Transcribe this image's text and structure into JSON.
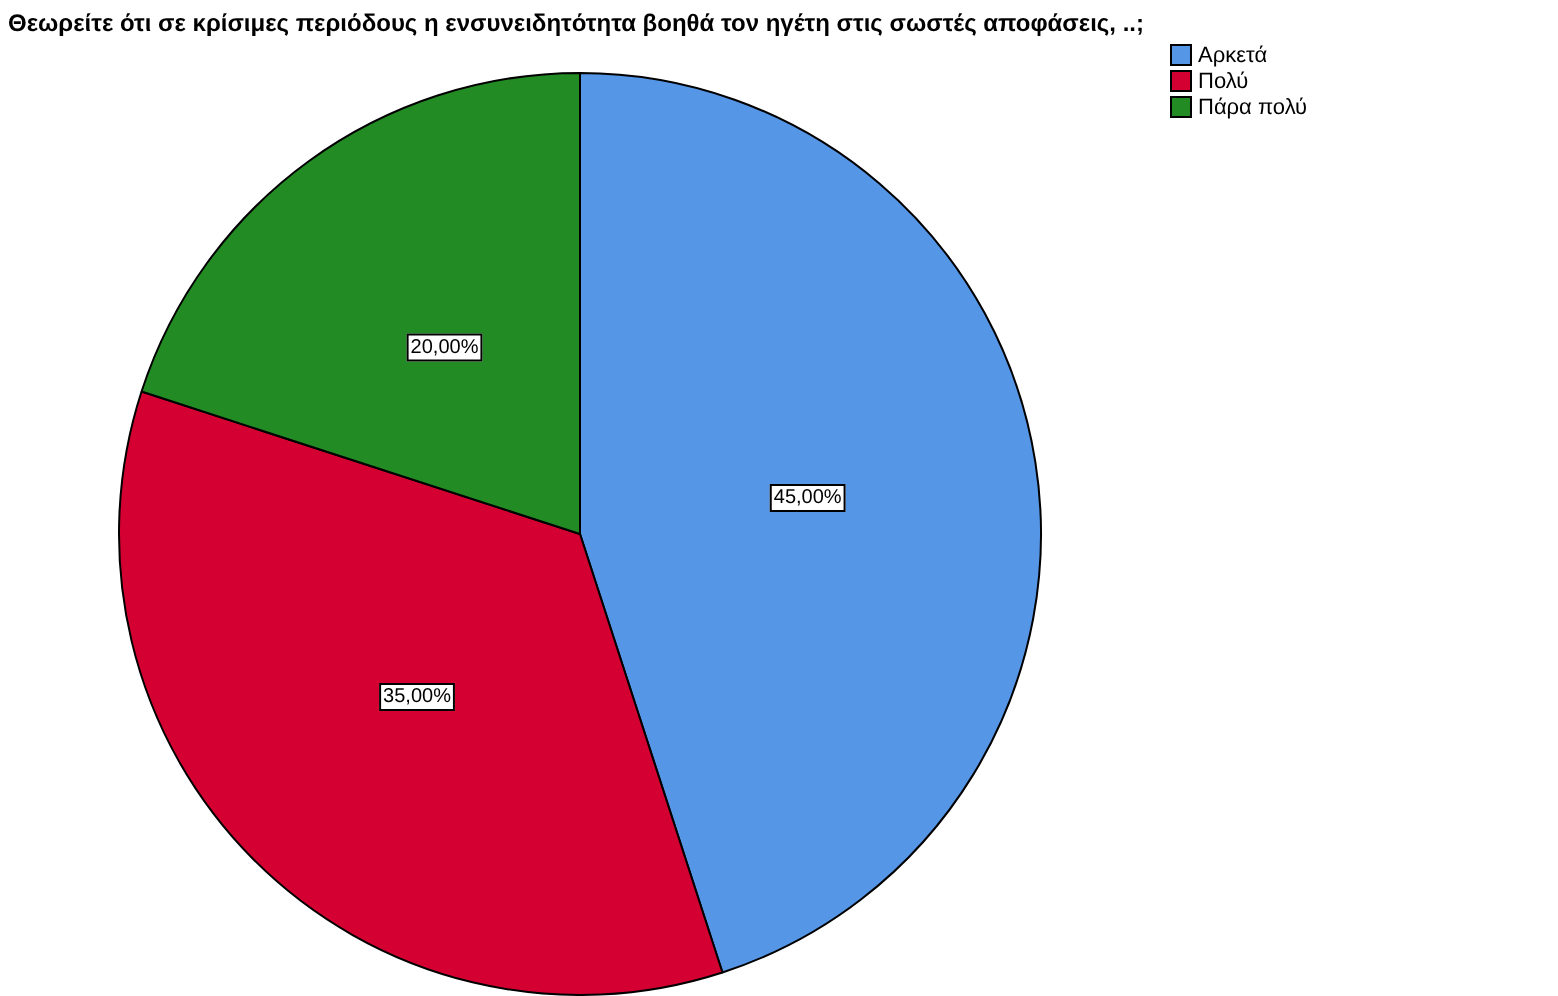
{
  "chart_data": {
    "type": "pie",
    "title": "Θεωρείτε ότι σε κρίσιμες περιόδους η ενσυνειδητότητα βοηθά τον ηγέτη στις σωστές αποφάσεις, ..;",
    "categories": [
      "Αρκετά",
      "Πολύ",
      "Πάρα πολύ"
    ],
    "values": [
      45,
      35,
      20
    ],
    "colors": [
      "#5596e6",
      "#d50032",
      "#238b23"
    ],
    "value_labels": [
      "45,00%",
      "35,00%",
      "20,00%"
    ],
    "legend": "top right"
  }
}
